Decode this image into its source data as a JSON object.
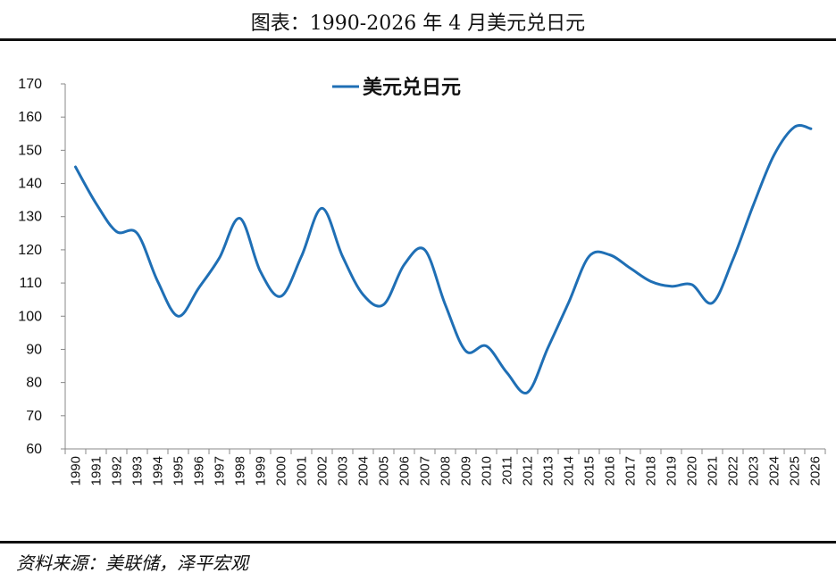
{
  "header": {
    "title": "图表：1990-2026 年 4 月美元兑日元"
  },
  "footer": {
    "source": "资料来源：美联储，泽平宏观"
  },
  "colors": {
    "line": "#1F6FB5",
    "axis": "#888888"
  },
  "chart_data": {
    "type": "line",
    "title": "",
    "xlabel": "",
    "ylabel": "",
    "ylim": [
      60,
      170
    ],
    "yticks": [
      60,
      70,
      80,
      90,
      100,
      110,
      120,
      130,
      140,
      150,
      160,
      170
    ],
    "legend": "top-center",
    "grid": false,
    "categories": [
      "1990",
      "1991",
      "1992",
      "1993",
      "1994",
      "1995",
      "1996",
      "1997",
      "1998",
      "1999",
      "2000",
      "2001",
      "2002",
      "2003",
      "2004",
      "2005",
      "2006",
      "2007",
      "2008",
      "2009",
      "2010",
      "2011",
      "2012",
      "2013",
      "2014",
      "2015",
      "2016",
      "2017",
      "2018",
      "2019",
      "2020",
      "2021",
      "2022",
      "2023",
      "2024",
      "2025",
      "2026"
    ],
    "series": [
      {
        "name": "美元兑日元",
        "x": [
          1990.0,
          1991.0,
          1992.0,
          1993.0,
          1994.0,
          1995.0,
          1996.0,
          1997.0,
          1998.0,
          1999.0,
          2000.0,
          2001.0,
          2002.0,
          2003.0,
          2004.0,
          2005.0,
          2006.0,
          2007.0,
          2008.0,
          2009.0,
          2010.0,
          2011.0,
          2012.0,
          2013.0,
          2014.0,
          2015.0,
          2016.0,
          2017.0,
          2018.0,
          2019.0,
          2020.0,
          2021.0,
          2022.0,
          2023.0,
          2024.0,
          2025.0,
          2025.8
        ],
        "values": [
          145,
          134,
          125.5,
          125,
          110.5,
          100,
          108.5,
          117.5,
          129.5,
          113.5,
          106,
          118,
          132.5,
          118,
          106.5,
          103.5,
          115.5,
          120,
          103.5,
          89.5,
          91,
          83,
          77,
          90.5,
          104,
          118,
          118.5,
          114.5,
          110.5,
          109,
          109.5,
          104,
          117,
          133.5,
          148.5,
          157,
          156.5
        ]
      }
    ]
  }
}
